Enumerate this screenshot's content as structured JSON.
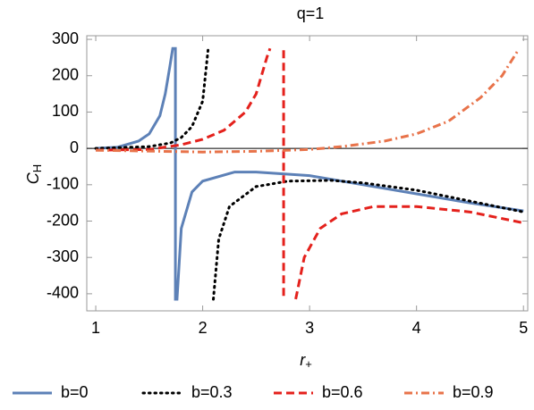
{
  "chart_data": {
    "type": "line",
    "title": "q=1",
    "ylabel": {
      "main": "C",
      "sub": "H"
    },
    "xlabel": {
      "main": "r",
      "sub": "+"
    },
    "xlim": [
      0.916,
      5.04
    ],
    "ylim": [
      -447,
      310
    ],
    "xticks": [
      1,
      2,
      3,
      4,
      5
    ],
    "yticks": [
      -400,
      -300,
      -200,
      -100,
      0,
      100,
      200,
      300
    ],
    "zero_line": true,
    "series": [
      {
        "name": "b=0",
        "color": "#5d81b7",
        "style": "solid",
        "x": [
          1.0,
          1.2,
          1.4,
          1.5,
          1.6,
          1.65,
          1.69,
          1.72,
          1.745,
          1.745,
          1.76,
          1.8,
          1.9,
          2.0,
          2.3,
          2.5,
          3.0,
          3.5,
          4.0,
          4.5,
          5.0
        ],
        "values": [
          0,
          3,
          20,
          40,
          90,
          150,
          220,
          275,
          275,
          -415,
          -415,
          -220,
          -120,
          -90,
          -65,
          -65,
          -75,
          -100,
          -125,
          -150,
          -172
        ]
      },
      {
        "name": "b=0.3",
        "color": "#000000",
        "style": "dotted",
        "x": [
          1.0,
          1.5,
          1.7,
          1.8,
          1.9,
          2.0,
          2.05,
          2.07,
          2.1,
          2.15,
          2.25,
          2.5,
          2.8,
          3.2,
          3.5,
          4.0,
          4.5,
          5.0
        ],
        "values": [
          0,
          5,
          15,
          30,
          60,
          130,
          270,
          null,
          -415,
          -250,
          -160,
          -105,
          -90,
          -88,
          -95,
          -115,
          -145,
          -175
        ]
      },
      {
        "name": "b=0.6",
        "color": "#e4211c",
        "style": "dashed",
        "x": [
          1.0,
          1.5,
          1.8,
          2.0,
          2.2,
          2.4,
          2.5,
          2.6,
          2.63,
          2.7,
          2.757,
          2.757,
          2.8,
          2.87,
          2.95,
          3.1,
          3.3,
          3.6,
          4.0,
          4.5,
          5.0
        ],
        "values": [
          -5,
          -3,
          10,
          25,
          50,
          100,
          150,
          250,
          275,
          null,
          270,
          -415,
          null,
          -415,
          -300,
          -220,
          -180,
          -160,
          -160,
          -175,
          -205
        ]
      },
      {
        "name": "b=0.9",
        "color": "#e8734a",
        "style": "dashdot",
        "x": [
          1.0,
          2.0,
          2.5,
          3.0,
          3.3,
          3.7,
          4.0,
          4.3,
          4.6,
          4.8,
          4.95
        ],
        "values": [
          -5,
          -10,
          -8,
          -3,
          5,
          20,
          40,
          75,
          140,
          200,
          270
        ]
      }
    ]
  }
}
